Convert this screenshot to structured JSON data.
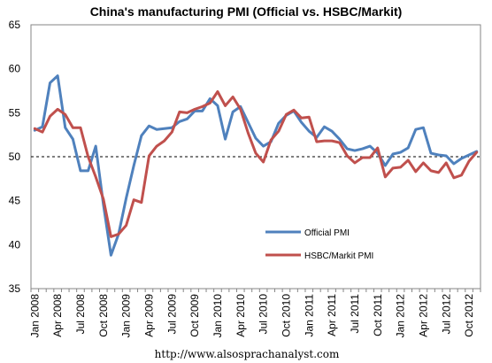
{
  "chart_data": {
    "type": "line",
    "title": "China's manufacturing PMI (Official vs. HSBC/Markit)",
    "xlabel": "",
    "ylabel": "",
    "ylim": [
      35,
      65
    ],
    "yticks": [
      "35",
      "40",
      "45",
      "50",
      "55",
      "60",
      "65"
    ],
    "x": [
      "Jan 2008",
      "Feb 2008",
      "Mar 2008",
      "Apr 2008",
      "May 2008",
      "Jun 2008",
      "Jul 2008",
      "Aug 2008",
      "Sep 2008",
      "Oct 2008",
      "Nov 2008",
      "Dec 2008",
      "Jan 2009",
      "Feb 2009",
      "Mar 2009",
      "Apr 2009",
      "May 2009",
      "Jun 2009",
      "Jul 2009",
      "Aug 2009",
      "Sep 2009",
      "Oct 2009",
      "Nov 2009",
      "Dec 2009",
      "Jan 2010",
      "Feb 2010",
      "Mar 2010",
      "Apr 2010",
      "May 2010",
      "Jun 2010",
      "Jul 2010",
      "Aug 2010",
      "Sep 2010",
      "Oct 2010",
      "Nov 2010",
      "Dec 2010",
      "Jan 2011",
      "Feb 2011",
      "Mar 2011",
      "Apr 2011",
      "May 2011",
      "Jun 2011",
      "Jul 2011",
      "Aug 2011",
      "Sep 2011",
      "Oct 2011",
      "Nov 2011",
      "Dec 2011",
      "Jan 2012",
      "Feb 2012",
      "Mar 2012",
      "Apr 2012",
      "May 2012",
      "Jun 2012",
      "Jul 2012",
      "Aug 2012",
      "Sep 2012",
      "Oct 2012",
      "Nov 2012"
    ],
    "xtick_labels": [
      "Jan 2008",
      "Apr 2008",
      "Jul 2008",
      "Oct 2008",
      "Jan 2009",
      "Apr 2009",
      "Jul 2009",
      "Oct 2009",
      "Jan 2010",
      "Apr 2010",
      "Jul 2010",
      "Oct 2010",
      "Jan 2011",
      "Apr 2011",
      "Jul 2011",
      "Oct 2011",
      "Jan 2012",
      "Apr 2012",
      "Jul 2012",
      "Oct 2012"
    ],
    "reference_line": {
      "y": 50,
      "style": "dashed",
      "color": "#000000"
    },
    "series": [
      {
        "name": "Official PMI",
        "color": "#4F81BD",
        "values": [
          53.0,
          53.4,
          58.4,
          59.2,
          53.3,
          52.0,
          48.4,
          48.4,
          51.2,
          44.6,
          38.8,
          41.2,
          45.3,
          49.0,
          52.4,
          53.5,
          53.1,
          53.2,
          53.3,
          54.0,
          54.3,
          55.2,
          55.2,
          56.6,
          55.8,
          52.0,
          55.1,
          55.7,
          53.9,
          52.1,
          51.2,
          51.7,
          53.8,
          54.7,
          55.2,
          53.9,
          52.9,
          52.2,
          53.4,
          52.9,
          52.0,
          50.9,
          50.7,
          50.9,
          51.2,
          50.4,
          49.0,
          50.3,
          50.5,
          51.0,
          53.1,
          53.3,
          50.4,
          50.2,
          50.1,
          49.2,
          49.8,
          50.2,
          50.6
        ]
      },
      {
        "name": "HSBC/Markit PMI",
        "color": "#C0504D",
        "values": [
          53.2,
          52.8,
          54.6,
          55.4,
          54.8,
          53.3,
          53.3,
          50.0,
          47.7,
          45.2,
          40.9,
          41.2,
          42.2,
          45.1,
          44.8,
          50.1,
          51.2,
          51.8,
          52.8,
          55.1,
          55.0,
          55.4,
          55.7,
          56.1,
          57.4,
          55.8,
          56.8,
          55.4,
          52.7,
          50.4,
          49.4,
          51.9,
          52.9,
          54.8,
          55.3,
          54.4,
          54.5,
          51.7,
          51.8,
          51.8,
          51.6,
          50.1,
          49.3,
          49.9,
          49.9,
          51.0,
          47.7,
          48.7,
          48.8,
          49.6,
          48.3,
          49.3,
          48.4,
          48.2,
          49.3,
          47.6,
          47.9,
          49.5,
          50.5
        ]
      }
    ],
    "legend": {
      "placement": "lower-right",
      "entries": [
        "Official PMI",
        "HSBC/Markit PMI"
      ]
    },
    "source": "http://www.alsosprachanalyst.com"
  }
}
